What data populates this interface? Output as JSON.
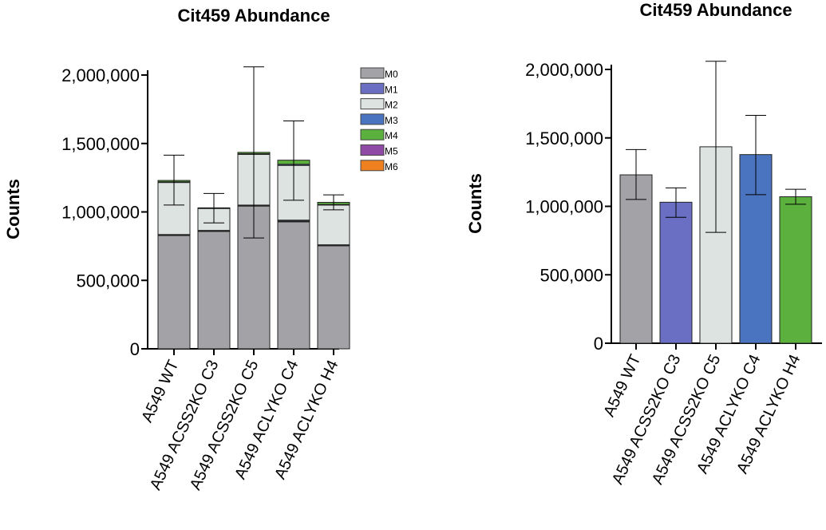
{
  "chart_data": [
    {
      "type": "bar",
      "stacked": true,
      "title": "Cit459 Abundance",
      "ylabel": "Counts",
      "xlabel": "",
      "ylim": [
        0,
        2000000
      ],
      "yticks": [
        "0",
        "500,000",
        "1,000,000",
        "1,500,000",
        "2,000,000"
      ],
      "ytick_values": [
        0,
        500000,
        1000000,
        1500000,
        2000000
      ],
      "categories": [
        "A549 WT",
        "A549 ACSS2KO C3",
        "A549 ACSS2KO C5",
        "A549 ACLYKO C4",
        "A549 ACLYKO H4"
      ],
      "series": [
        {
          "name": "M0",
          "color": "#a3a2a7",
          "values": [
            830000,
            860000,
            1045000,
            930000,
            755000
          ]
        },
        {
          "name": "M1",
          "color": "#6a6fc4",
          "values": [
            5000,
            5000,
            5000,
            10000,
            5000
          ]
        },
        {
          "name": "M2",
          "color": "#dde3e1",
          "values": [
            380000,
            160000,
            370000,
            400000,
            290000
          ]
        },
        {
          "name": "M3",
          "color": "#4a74c0",
          "values": [
            5000,
            3000,
            5000,
            8000,
            5000
          ]
        },
        {
          "name": "M4",
          "color": "#5cb13e",
          "values": [
            10000,
            2000,
            10000,
            30000,
            15000
          ]
        },
        {
          "name": "M5",
          "color": "#8f4aa6",
          "values": [
            0,
            0,
            0,
            0,
            0
          ]
        },
        {
          "name": "M6",
          "color": "#ef8020",
          "values": [
            0,
            0,
            0,
            0,
            0
          ]
        }
      ],
      "error_bars": {
        "center": [
          1230000,
          1030000,
          1435000,
          1378000,
          1070000
        ],
        "upper": [
          1415000,
          1135000,
          2060000,
          1665000,
          1125000
        ],
        "lower": [
          1050000,
          920000,
          810000,
          1085000,
          1015000
        ]
      },
      "legend": "top-right"
    },
    {
      "type": "bar",
      "stacked": false,
      "title": "Cit459 Abundance",
      "ylabel": "Counts",
      "xlabel": "",
      "ylim": [
        0,
        2000000
      ],
      "yticks": [
        "0",
        "500,000",
        "1,000,000",
        "1,500,000",
        "2,000,000"
      ],
      "ytick_values": [
        0,
        500000,
        1000000,
        1500000,
        2000000
      ],
      "categories": [
        "A549 WT",
        "A549 ACSS2KO C3",
        "A549 ACSS2KO C5",
        "A549 ACLYKO C4",
        "A549 ACLYKO H4"
      ],
      "colors": [
        "#a3a2a7",
        "#6a6fc4",
        "#dde3e1",
        "#4a74c0",
        "#5cb13e"
      ],
      "values": [
        1230000,
        1030000,
        1435000,
        1378000,
        1070000
      ],
      "error_bars": {
        "upper": [
          1415000,
          1135000,
          2060000,
          1665000,
          1125000
        ],
        "lower": [
          1050000,
          920000,
          810000,
          1085000,
          1015000
        ]
      }
    }
  ]
}
